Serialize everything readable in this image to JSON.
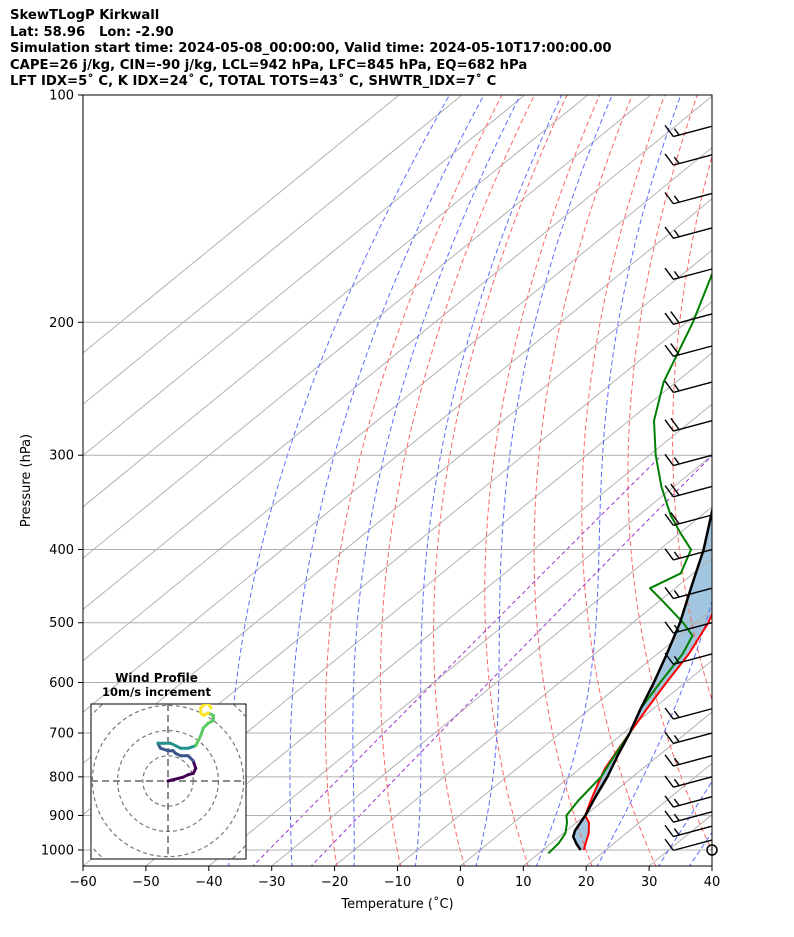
{
  "header": {
    "line1": "SkewTLogP Kirkwall",
    "line2": "Lat: 58.96   Lon: -2.90",
    "line3": "Simulation start time: 2024-05-08_00:00:00, Valid time: 2024-05-10T17:00:00.00",
    "line4": "CAPE=26 j/kg, CIN=-90 j/kg, LCL=942 hPa, LFC=845 hPa, EQ=682 hPa",
    "line5": "LFT IDX=5˚ C, K IDX=24˚ C, TOTAL TOTS=43˚ C, SHWTR_IDX=7˚ C"
  },
  "chart_data": {
    "type": "line",
    "title": "SkewTLogP Kirkwall",
    "xlabel": "Temperature (˚C)",
    "ylabel": "Pressure (hPa)",
    "xlim": [
      -60,
      40
    ],
    "ylim": [
      1050,
      100
    ],
    "y_scale": "log",
    "grid": true,
    "x_ticks": [
      -60,
      -50,
      -40,
      -30,
      -20,
      -10,
      0,
      10,
      20,
      30,
      40
    ],
    "x_tick_labels": [
      "−60",
      "−50",
      "−40",
      "−30",
      "−20",
      "−10",
      "0",
      "10",
      "20",
      "30",
      "40"
    ],
    "y_ticks": [
      1000,
      900,
      800,
      700,
      600,
      500,
      400,
      300,
      200,
      100
    ],
    "y_tick_labels": [
      "1000",
      "900",
      "800",
      "700",
      "600",
      "500",
      "400",
      "300",
      "200",
      "100"
    ],
    "series": [
      {
        "role": "temperature",
        "color": "#ff0000",
        "points": [
          [
            1000,
            16.5
          ],
          [
            980,
            15.5
          ],
          [
            950,
            14
          ],
          [
            920,
            12
          ],
          [
            900,
            10
          ],
          [
            870,
            8.5
          ],
          [
            840,
            7
          ],
          [
            800,
            5
          ],
          [
            780,
            4
          ],
          [
            740,
            2.5
          ],
          [
            700,
            1
          ],
          [
            650,
            -1
          ],
          [
            600,
            -3
          ],
          [
            550,
            -5
          ],
          [
            500,
            -8
          ],
          [
            470,
            -10.5
          ],
          [
            430,
            -14
          ],
          [
            400,
            -17.5
          ],
          [
            380,
            -20.5
          ],
          [
            360,
            -24
          ],
          [
            330,
            -29
          ],
          [
            300,
            -35
          ],
          [
            270,
            -42
          ],
          [
            240,
            -49.5
          ],
          [
            220,
            -55
          ],
          [
            200,
            -60
          ],
          [
            180,
            -63
          ],
          [
            150,
            -65
          ],
          [
            130,
            -66
          ],
          [
            110,
            -68
          ],
          [
            100,
            -70
          ]
        ]
      },
      {
        "role": "dewpoint",
        "color": "#008000",
        "points": [
          [
            1010,
            11.5
          ],
          [
            980,
            11.2
          ],
          [
            950,
            10.3
          ],
          [
            920,
            8.5
          ],
          [
            900,
            7
          ],
          [
            860,
            6
          ],
          [
            800,
            5
          ],
          [
            750,
            3
          ],
          [
            700,
            1
          ],
          [
            650,
            -2
          ],
          [
            600,
            -4
          ],
          [
            550,
            -6
          ],
          [
            520,
            -8
          ],
          [
            500,
            -12
          ],
          [
            470,
            -19
          ],
          [
            450,
            -24
          ],
          [
            430,
            -22
          ],
          [
            400,
            -25
          ],
          [
            380,
            -30
          ],
          [
            360,
            -35
          ],
          [
            330,
            -42
          ],
          [
            300,
            -49
          ],
          [
            270,
            -56
          ],
          [
            240,
            -62
          ],
          [
            200,
            -69
          ],
          [
            170,
            -76
          ],
          [
            160,
            -78
          ],
          [
            150,
            -79
          ],
          [
            130,
            -80
          ],
          [
            110,
            -81
          ],
          [
            100,
            -82
          ]
        ]
      },
      {
        "role": "parcel_profile",
        "color": "#000000",
        "points": [
          [
            1000,
            16
          ],
          [
            980,
            14
          ],
          [
            960,
            12.2
          ],
          [
            942,
            11.3
          ],
          [
            900,
            10
          ],
          [
            850,
            8
          ],
          [
            800,
            6
          ],
          [
            750,
            3.5
          ],
          [
            700,
            1
          ],
          [
            650,
            -2
          ],
          [
            600,
            -5
          ],
          [
            550,
            -8.5
          ],
          [
            500,
            -12.5
          ],
          [
            450,
            -17.5
          ],
          [
            400,
            -23
          ],
          [
            350,
            -30
          ],
          [
            300,
            -38
          ],
          [
            250,
            -47.5
          ],
          [
            200,
            -59
          ],
          [
            150,
            -73
          ],
          [
            100,
            -90
          ]
        ]
      }
    ],
    "shading": {
      "color": "#a3c6e0",
      "description": "region between parcel profile and temperature"
    },
    "reference_lines": {
      "isotherms": {
        "color": "#b3b3b3"
      },
      "dry_adiabats": {
        "color": "#ff6666",
        "style": "dashed",
        "theta_K": [
          250,
          260,
          270,
          280,
          290,
          300,
          310,
          320,
          330,
          340,
          350,
          360,
          370,
          380,
          390,
          400,
          420,
          440
        ]
      },
      "moist_adiabats": {
        "color": "#5c6bff",
        "style": "dashed",
        "start_T_C_at_1000": [
          -40,
          -30,
          -20,
          -10,
          0,
          10,
          20,
          30,
          35
        ]
      },
      "mixing_ratio": {
        "color": "#9933cc",
        "style": "dashed"
      }
    },
    "wind_barbs": [
      {
        "p": 1000,
        "speed": 0
      },
      {
        "p": 970,
        "speed": 10
      },
      {
        "p": 930,
        "speed": 15
      },
      {
        "p": 890,
        "speed": 15
      },
      {
        "p": 850,
        "speed": 15
      },
      {
        "p": 800,
        "speed": 15
      },
      {
        "p": 750,
        "speed": 15
      },
      {
        "p": 700,
        "speed": 15
      },
      {
        "p": 650,
        "speed": 15
      },
      {
        "p": 550,
        "speed": 15
      },
      {
        "p": 500,
        "speed": 15
      },
      {
        "p": 450,
        "speed": 15
      },
      {
        "p": 400,
        "speed": 15
      },
      {
        "p": 360,
        "speed": 20
      },
      {
        "p": 330,
        "speed": 20
      },
      {
        "p": 300,
        "speed": 15
      },
      {
        "p": 270,
        "speed": 20
      },
      {
        "p": 240,
        "speed": 15
      },
      {
        "p": 215,
        "speed": 20
      },
      {
        "p": 195,
        "speed": 20
      },
      {
        "p": 170,
        "speed": 15
      },
      {
        "p": 150,
        "speed": 15
      },
      {
        "p": 135,
        "speed": 15
      },
      {
        "p": 120,
        "speed": 15
      },
      {
        "p": 110,
        "speed": 15
      }
    ],
    "hodograph": {
      "title": "Wind Profile",
      "subtitle": "10m/s increment",
      "ring_step_ms": 10,
      "points": [
        [
          0,
          0
        ],
        [
          2,
          0.5
        ],
        [
          4,
          1
        ],
        [
          6,
          1.5
        ],
        [
          8,
          2.5
        ],
        [
          10,
          3
        ],
        [
          11,
          5
        ],
        [
          10,
          8
        ],
        [
          8,
          10
        ],
        [
          5,
          10
        ],
        [
          3,
          11
        ],
        [
          2,
          12
        ],
        [
          0,
          12
        ],
        [
          -3,
          13
        ],
        [
          -4,
          15
        ],
        [
          -2,
          15
        ],
        [
          1,
          15
        ],
        [
          3,
          14
        ],
        [
          5,
          13
        ],
        [
          8,
          13
        ],
        [
          11,
          14
        ],
        [
          12,
          16
        ],
        [
          13,
          18
        ],
        [
          14,
          21
        ],
        [
          16,
          23
        ],
        [
          18,
          24
        ],
        [
          18,
          26
        ],
        [
          16,
          27
        ],
        [
          14,
          26
        ],
        [
          13,
          27
        ],
        [
          13,
          29
        ],
        [
          14,
          30
        ],
        [
          16,
          31
        ],
        [
          17,
          29
        ]
      ]
    }
  }
}
